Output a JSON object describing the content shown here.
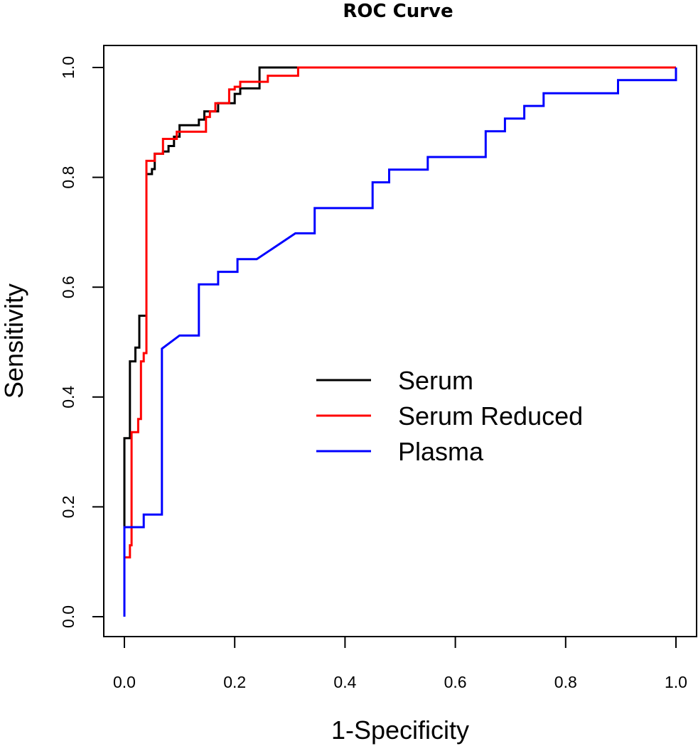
{
  "chart_data": {
    "type": "line",
    "title": "ROC Curve",
    "xlabel": "1-Specificity",
    "ylabel": "Sensitivity",
    "xlim": [
      0,
      1
    ],
    "ylim": [
      0,
      1
    ],
    "x_ticks": [
      "0.0",
      "0.2",
      "0.4",
      "0.6",
      "0.8",
      "1.0"
    ],
    "y_ticks": [
      "0.0",
      "0.2",
      "0.4",
      "0.6",
      "0.8",
      "1.0"
    ],
    "grid": false,
    "legend_position": "center-right",
    "series": [
      {
        "name": "Serum",
        "color": "#000000",
        "points": [
          [
            0,
            0.16
          ],
          [
            0,
            0.325
          ],
          [
            0.01,
            0.325
          ],
          [
            0.01,
            0.465
          ],
          [
            0.02,
            0.465
          ],
          [
            0.02,
            0.49
          ],
          [
            0.027,
            0.49
          ],
          [
            0.027,
            0.548
          ],
          [
            0.04,
            0.548
          ],
          [
            0.04,
            0.806
          ],
          [
            0.05,
            0.806
          ],
          [
            0.05,
            0.815
          ],
          [
            0.055,
            0.815
          ],
          [
            0.055,
            0.843
          ],
          [
            0.07,
            0.843
          ],
          [
            0.07,
            0.847
          ],
          [
            0.08,
            0.847
          ],
          [
            0.08,
            0.857
          ],
          [
            0.09,
            0.857
          ],
          [
            0.09,
            0.874
          ],
          [
            0.1,
            0.874
          ],
          [
            0.1,
            0.895
          ],
          [
            0.135,
            0.895
          ],
          [
            0.135,
            0.905
          ],
          [
            0.145,
            0.905
          ],
          [
            0.145,
            0.92
          ],
          [
            0.17,
            0.92
          ],
          [
            0.17,
            0.935
          ],
          [
            0.2,
            0.935
          ],
          [
            0.2,
            0.952
          ],
          [
            0.21,
            0.952
          ],
          [
            0.21,
            0.962
          ],
          [
            0.245,
            0.962
          ],
          [
            0.245,
            1.0
          ],
          [
            0.3,
            1.0
          ],
          [
            1.0,
            1.0
          ]
        ]
      },
      {
        "name": "Serum Reduced",
        "color": "#ff0000",
        "points": [
          [
            0,
            0.108
          ],
          [
            0.01,
            0.108
          ],
          [
            0.01,
            0.13
          ],
          [
            0.013,
            0.13
          ],
          [
            0.013,
            0.336
          ],
          [
            0.025,
            0.336
          ],
          [
            0.025,
            0.36
          ],
          [
            0.03,
            0.36
          ],
          [
            0.03,
            0.465
          ],
          [
            0.035,
            0.465
          ],
          [
            0.035,
            0.48
          ],
          [
            0.04,
            0.48
          ],
          [
            0.04,
            0.83
          ],
          [
            0.055,
            0.83
          ],
          [
            0.055,
            0.843
          ],
          [
            0.07,
            0.843
          ],
          [
            0.07,
            0.87
          ],
          [
            0.095,
            0.87
          ],
          [
            0.095,
            0.883
          ],
          [
            0.148,
            0.883
          ],
          [
            0.148,
            0.91
          ],
          [
            0.155,
            0.91
          ],
          [
            0.155,
            0.92
          ],
          [
            0.165,
            0.92
          ],
          [
            0.165,
            0.935
          ],
          [
            0.19,
            0.935
          ],
          [
            0.19,
            0.96
          ],
          [
            0.2,
            0.96
          ],
          [
            0.2,
            0.965
          ],
          [
            0.21,
            0.965
          ],
          [
            0.21,
            0.974
          ],
          [
            0.26,
            0.974
          ],
          [
            0.26,
            0.985
          ],
          [
            0.315,
            0.985
          ],
          [
            0.315,
            1.0
          ],
          [
            1.0,
            1.0
          ]
        ]
      },
      {
        "name": "Plasma",
        "color": "#0000ff",
        "points": [
          [
            0,
            0.0
          ],
          [
            0,
            0.163
          ],
          [
            0.035,
            0.163
          ],
          [
            0.035,
            0.186
          ],
          [
            0.068,
            0.186
          ],
          [
            0.068,
            0.488
          ],
          [
            0.1,
            0.512
          ],
          [
            0.135,
            0.512
          ],
          [
            0.135,
            0.605
          ],
          [
            0.17,
            0.605
          ],
          [
            0.17,
            0.628
          ],
          [
            0.205,
            0.628
          ],
          [
            0.205,
            0.651
          ],
          [
            0.24,
            0.651
          ],
          [
            0.31,
            0.698
          ],
          [
            0.345,
            0.698
          ],
          [
            0.345,
            0.744
          ],
          [
            0.45,
            0.744
          ],
          [
            0.45,
            0.791
          ],
          [
            0.48,
            0.791
          ],
          [
            0.48,
            0.814
          ],
          [
            0.55,
            0.814
          ],
          [
            0.55,
            0.837
          ],
          [
            0.655,
            0.837
          ],
          [
            0.655,
            0.884
          ],
          [
            0.69,
            0.884
          ],
          [
            0.69,
            0.907
          ],
          [
            0.725,
            0.907
          ],
          [
            0.725,
            0.93
          ],
          [
            0.76,
            0.93
          ],
          [
            0.76,
            0.953
          ],
          [
            0.895,
            0.953
          ],
          [
            0.895,
            0.977
          ],
          [
            1.0,
            0.977
          ],
          [
            1.0,
            1.0
          ]
        ]
      }
    ]
  }
}
